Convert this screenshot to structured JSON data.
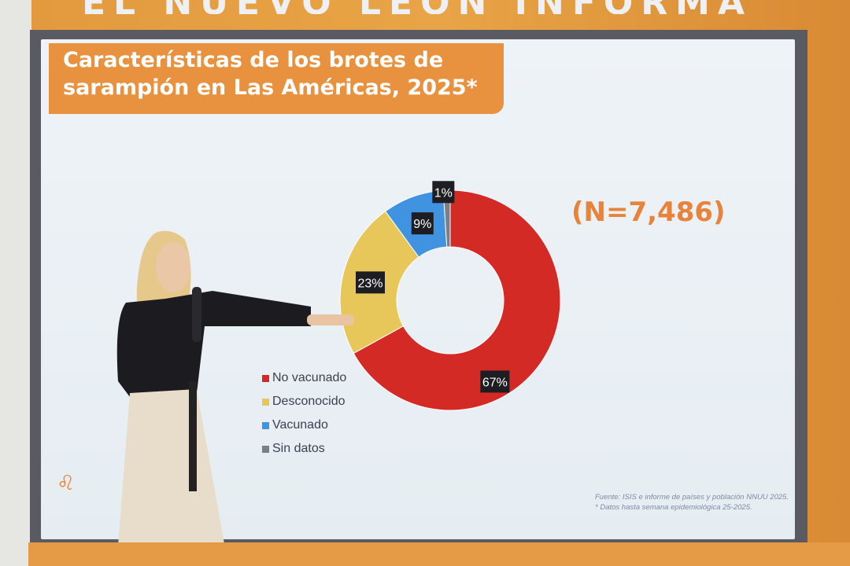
{
  "banner": {
    "text": "EL NUEVO LEÓN INFORMA"
  },
  "slide": {
    "title_line1": "Características de los brotes de",
    "title_line2": "sarampión en Las Américas, 2025*",
    "n_label": "(N=7,486)",
    "source_line1": "Fuente:  ISIS e informe de países y población NNUU 2025.",
    "source_line2": "* Datos hasta semana epidemiológica 25-2025."
  },
  "chart_data": {
    "type": "pie",
    "style": "donut",
    "categories": [
      "No vacunado",
      "Desconocido",
      "Vacunado",
      "Sin datos"
    ],
    "values": [
      67,
      23,
      9,
      1
    ],
    "labels": [
      "67%",
      "23%",
      "9%",
      "1%"
    ],
    "colors": [
      "#d42a26",
      "#e8c75a",
      "#3f93e0",
      "#7a7f8c"
    ],
    "legend_placement": "left"
  }
}
